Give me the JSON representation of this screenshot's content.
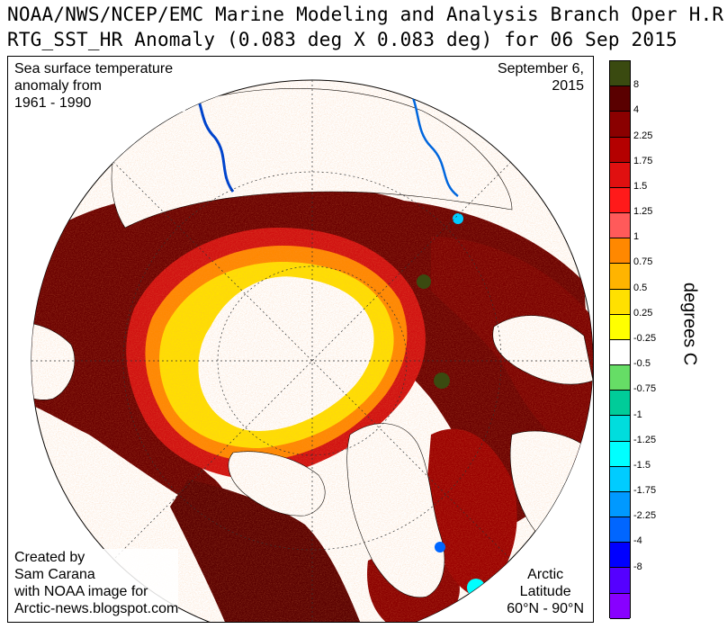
{
  "header": {
    "title_line1": "NOAA/NWS/NCEP/EMC Marine Modeling and Analysis Branch Oper H.R.",
    "title_line2": "RTG_SST_HR Anomaly (0.083 deg X 0.083 deg) for 06 Sep 2015"
  },
  "overlays": {
    "top_left": [
      "Sea surface temperature",
      "anomaly from",
      "1961 - 1990"
    ],
    "top_right": [
      "September 6,",
      "2015"
    ],
    "bottom_left": [
      "Created by",
      "Sam Carana",
      "with NOAA image for",
      "Arctic-news.blogspot.com"
    ],
    "bottom_right": [
      "Arctic",
      "Latitude",
      "60°N - 90°N"
    ]
  },
  "colorbar": {
    "units_label": "degrees C",
    "colors": [
      "#3a4a10",
      "#5a0000",
      "#8a0000",
      "#b40000",
      "#e01010",
      "#ff1a1a",
      "#ff5a5a",
      "#ff8800",
      "#ffb400",
      "#ffe000",
      "#ffff00",
      "#ffffff",
      "#66dd66",
      "#00cc99",
      "#00dddd",
      "#00ffff",
      "#00ccff",
      "#0099ff",
      "#0066ff",
      "#0000ff",
      "#5500ff",
      "#8800ff"
    ],
    "tick_labels": [
      "8",
      "4",
      "2.25",
      "1.75",
      "1.5",
      "1.25",
      "1",
      "0.75",
      "0.5",
      "0.25",
      "-0.25",
      "-0.5",
      "-0.75",
      "-1",
      "-1.25",
      "-1.5",
      "-1.75",
      "-2.25",
      "-4",
      "-8"
    ]
  },
  "map_colors": {
    "ice": "#ffffff",
    "land": "#ffffff",
    "high_anomaly": "#6a0000",
    "mid_anomaly": "#b40000",
    "warm_orange": "#ff8800",
    "near_zero_warm": "#ffff00",
    "cold_anomaly": "#00ffff",
    "river": "#0044cc"
  }
}
